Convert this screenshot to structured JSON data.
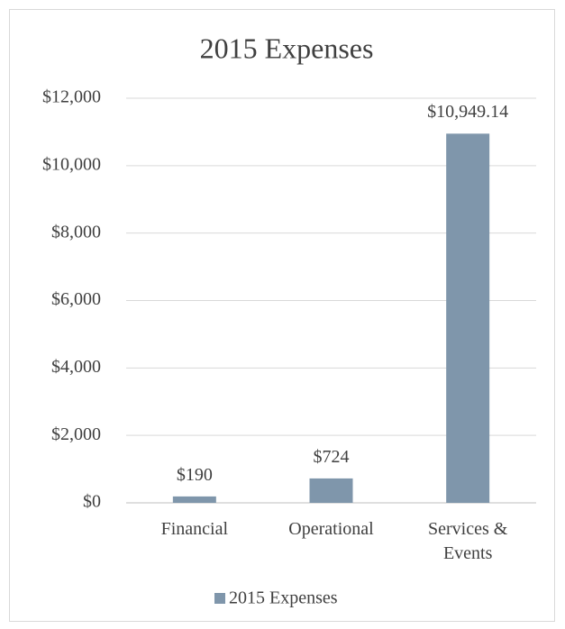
{
  "chart_data": {
    "type": "bar",
    "title": "2015 Expenses",
    "categories": [
      "Financial",
      "Operational",
      "Services & Events"
    ],
    "series": [
      {
        "name": "2015 Expenses",
        "color": "#7f96ab",
        "values": [
          190,
          724,
          10949.14
        ],
        "value_labels": [
          "$190",
          "$724",
          "$10,949.14"
        ]
      }
    ],
    "ylim": [
      0,
      12000
    ],
    "yticks": [
      {
        "value": 0,
        "label": "$0"
      },
      {
        "value": 2000,
        "label": "$2,000"
      },
      {
        "value": 4000,
        "label": "$4,000"
      },
      {
        "value": 6000,
        "label": "$6,000"
      },
      {
        "value": 8000,
        "label": "$8,000"
      },
      {
        "value": 10000,
        "label": "$10,000"
      },
      {
        "value": 12000,
        "label": "$12,000"
      }
    ],
    "grid": true,
    "legend": "bottom"
  }
}
